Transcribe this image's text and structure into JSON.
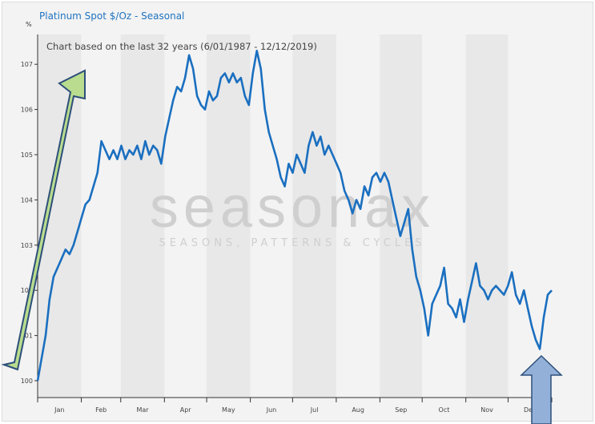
{
  "chart_data": {
    "type": "line",
    "title": "Platinum Spot  $/Oz - Seasonal",
    "subtitle": "Chart based on the last 32 years (6/01/1987 - 12/12/2019)",
    "ylabel": "%",
    "xlabel": "",
    "ylim": [
      99.6,
      107.7
    ],
    "xlim_days": [
      0,
      365
    ],
    "yticks": [
      100,
      101,
      102,
      103,
      104,
      105,
      106,
      107
    ],
    "month_labels": [
      "Jan",
      "Feb",
      "Mar",
      "Apr",
      "May",
      "Jun",
      "Jul",
      "Aug",
      "Sep",
      "Oct",
      "Nov",
      "Dec"
    ],
    "grid": "alternating month bands",
    "series": [
      {
        "name": "Platinum Spot seasonal",
        "color": "#1a6fc0",
        "values": [
          100.0,
          100.5,
          101.0,
          101.8,
          102.3,
          102.5,
          102.7,
          102.9,
          102.8,
          103.0,
          103.3,
          103.6,
          103.9,
          104.0,
          104.3,
          104.6,
          105.3,
          105.1,
          104.9,
          105.1,
          104.9,
          105.2,
          104.9,
          105.1,
          105.0,
          105.2,
          104.9,
          105.3,
          105.0,
          105.2,
          105.1,
          104.8,
          105.4,
          105.8,
          106.2,
          106.5,
          106.4,
          106.7,
          107.2,
          106.9,
          106.3,
          106.1,
          106.0,
          106.4,
          106.2,
          106.3,
          106.7,
          106.8,
          106.6,
          106.8,
          106.6,
          106.7,
          106.3,
          106.1,
          106.8,
          107.3,
          106.9,
          106.0,
          105.5,
          105.2,
          104.9,
          104.5,
          104.3,
          104.8,
          104.6,
          105.0,
          104.8,
          104.6,
          105.2,
          105.5,
          105.2,
          105.4,
          105.0,
          105.2,
          105.0,
          104.8,
          104.6,
          104.2,
          104.0,
          103.7,
          104.0,
          103.8,
          104.3,
          104.1,
          104.5,
          104.6,
          104.4,
          104.6,
          104.4,
          104.0,
          103.6,
          103.2,
          103.5,
          103.8,
          102.9,
          102.3,
          102.0,
          101.6,
          101.0,
          101.7,
          101.9,
          102.1,
          102.5,
          101.7,
          101.6,
          101.4,
          101.8,
          101.3,
          101.8,
          102.2,
          102.6,
          102.1,
          102.0,
          101.8,
          102.0,
          102.1,
          102.0,
          101.9,
          102.1,
          102.4,
          101.9,
          101.7,
          102.0,
          101.6,
          101.2,
          100.9,
          100.7,
          101.4,
          101.9,
          102.0
        ]
      }
    ],
    "annotations": [
      "green up arrow (Jan rise)",
      "blue up arrow (Dec low)"
    ]
  },
  "watermark": {
    "brand": "seasonax",
    "tagline": "SEASONS, PATTERNS & CYCLES"
  },
  "colors": {
    "band": "#e8e8e8",
    "bg": "#f3f3f3",
    "line": "#1a6fc0",
    "green_arrow": "#b9dc8e",
    "blue_arrow": "#93b1d8",
    "arrow_stroke": "#2d4f7a"
  }
}
